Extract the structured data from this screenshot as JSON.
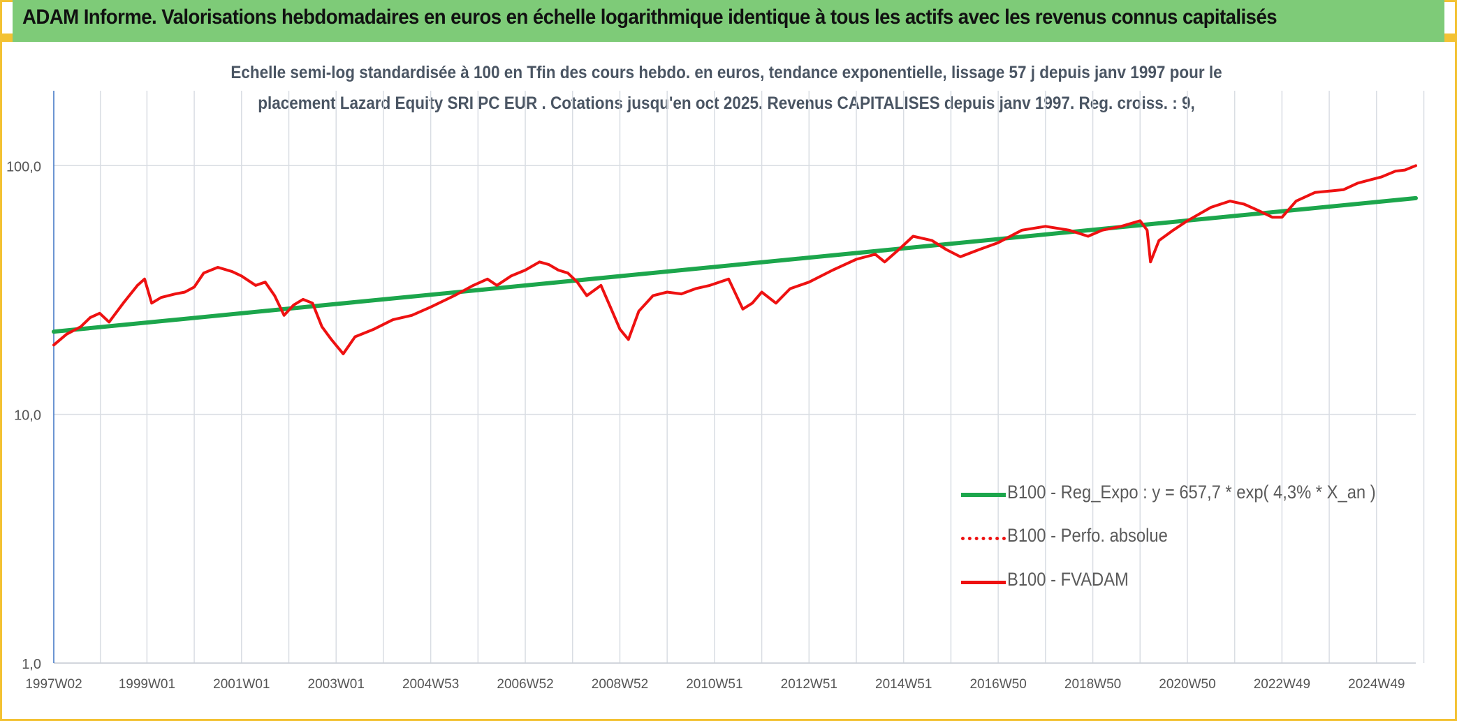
{
  "banner": {
    "title": "ADAM Informe. Valorisations hebdomadaires en euros en échelle logarithmique identique à tous les actifs avec les revenus connus capitalisés"
  },
  "subtitle": {
    "line1": "Echelle semi-log standardisée à 100 en Tfin des cours hebdo. en euros, tendance exponentielle, lissage 57 j depuis janv 1997 pour le",
    "line2": "placement Lazard Equity SRI PC EUR . Cotations jusqu'en oct 2025. Revenus CAPITALISES depuis janv 1997. Reg. croiss. : 9,"
  },
  "colors": {
    "banner": "#7ecb78",
    "frame": "#f3c233",
    "trend": "#1ca64c",
    "perf": "#ee1111",
    "grid": "#d9dde3",
    "axis": "#3a72c4"
  },
  "chart_data": {
    "type": "line",
    "yscale": "log",
    "ylim": [
      1,
      200
    ],
    "xlim": [
      1997.03,
      2025.83
    ],
    "grid": true,
    "legend_position": "bottom-right",
    "y_ticks": [
      {
        "value": 1,
        "label": "1,0"
      },
      {
        "value": 10,
        "label": "10,0"
      },
      {
        "value": 100,
        "label": "100,0"
      }
    ],
    "x_ticks": [
      {
        "value": 1997.03,
        "label": "1997W02"
      },
      {
        "value": 1999.0,
        "label": "1999W01"
      },
      {
        "value": 2001.0,
        "label": "2001W01"
      },
      {
        "value": 2003.0,
        "label": "2003W01"
      },
      {
        "value": 2005.0,
        "label": "2004W53"
      },
      {
        "value": 2007.0,
        "label": "2006W52"
      },
      {
        "value": 2009.0,
        "label": "2008W52"
      },
      {
        "value": 2011.0,
        "label": "2010W51"
      },
      {
        "value": 2013.0,
        "label": "2012W51"
      },
      {
        "value": 2015.0,
        "label": "2014W51"
      },
      {
        "value": 2017.0,
        "label": "2016W50"
      },
      {
        "value": 2019.0,
        "label": "2018W50"
      },
      {
        "value": 2021.0,
        "label": "2020W50"
      },
      {
        "value": 2023.0,
        "label": "2022W49"
      },
      {
        "value": 2025.0,
        "label": "2024W49"
      }
    ],
    "series": [
      {
        "name": "B100 - Reg_Expo : y = 657,7 * exp( 4,3% *  X_an )",
        "style": "solid-thick",
        "color": "#1ca64c",
        "x": [
          1997.03,
          2025.83
        ],
        "y": [
          21.5,
          74
        ]
      },
      {
        "name": "B100 - Perfo. absolue",
        "style": "dotted",
        "color": "#ee1111",
        "x": [],
        "y": []
      },
      {
        "name": "B100 - FVADAM",
        "style": "solid",
        "color": "#ee1111",
        "x": [
          1997.03,
          1997.3,
          1997.6,
          1997.8,
          1998.0,
          1998.2,
          1998.5,
          1998.8,
          1998.95,
          1999.1,
          1999.3,
          1999.6,
          1999.8,
          2000.0,
          2000.2,
          2000.5,
          2000.8,
          2001.0,
          2001.3,
          2001.5,
          2001.7,
          2001.9,
          2002.1,
          2002.3,
          2002.5,
          2002.7,
          2002.9,
          2003.15,
          2003.4,
          2003.8,
          2004.2,
          2004.6,
          2005.0,
          2005.5,
          2005.9,
          2006.2,
          2006.4,
          2006.7,
          2007.0,
          2007.3,
          2007.5,
          2007.7,
          2007.9,
          2008.1,
          2008.3,
          2008.6,
          2008.8,
          2009.0,
          2009.18,
          2009.4,
          2009.7,
          2010.0,
          2010.3,
          2010.6,
          2010.9,
          2011.3,
          2011.6,
          2011.8,
          2012.0,
          2012.3,
          2012.6,
          2013.0,
          2013.5,
          2014.0,
          2014.4,
          2014.6,
          2014.9,
          2015.2,
          2015.6,
          2015.9,
          2016.2,
          2016.6,
          2017.0,
          2017.5,
          2018.0,
          2018.5,
          2018.9,
          2019.2,
          2019.6,
          2020.0,
          2020.15,
          2020.22,
          2020.4,
          2020.7,
          2021.0,
          2021.5,
          2021.9,
          2022.2,
          2022.5,
          2022.8,
          2023.0,
          2023.3,
          2023.7,
          2024.0,
          2024.3,
          2024.6,
          2024.9,
          2025.1,
          2025.4,
          2025.6,
          2025.83
        ],
        "y": [
          19,
          21,
          22.5,
          24.5,
          25.5,
          23.5,
          28,
          33,
          35,
          28,
          29.5,
          30.5,
          31,
          32.5,
          37,
          39,
          37.5,
          36,
          33,
          34,
          30,
          25,
          27.5,
          29,
          28,
          22.5,
          20,
          17.5,
          20.5,
          22,
          24,
          25,
          27,
          30,
          33,
          35,
          33,
          36,
          38,
          41,
          40,
          38,
          37,
          34,
          30,
          33,
          27,
          22,
          20,
          26,
          30,
          31,
          30.5,
          32,
          33,
          35,
          26.5,
          28,
          31,
          28,
          32,
          34,
          38,
          42,
          44,
          41,
          46,
          52,
          50,
          46,
          43,
          46,
          49,
          55,
          57,
          55,
          52,
          55,
          57,
          60,
          55,
          41,
          50,
          55,
          60,
          68,
          72,
          70,
          66,
          62,
          62,
          72,
          78,
          79,
          80,
          85,
          88,
          90,
          95,
          96,
          100
        ]
      }
    ]
  }
}
